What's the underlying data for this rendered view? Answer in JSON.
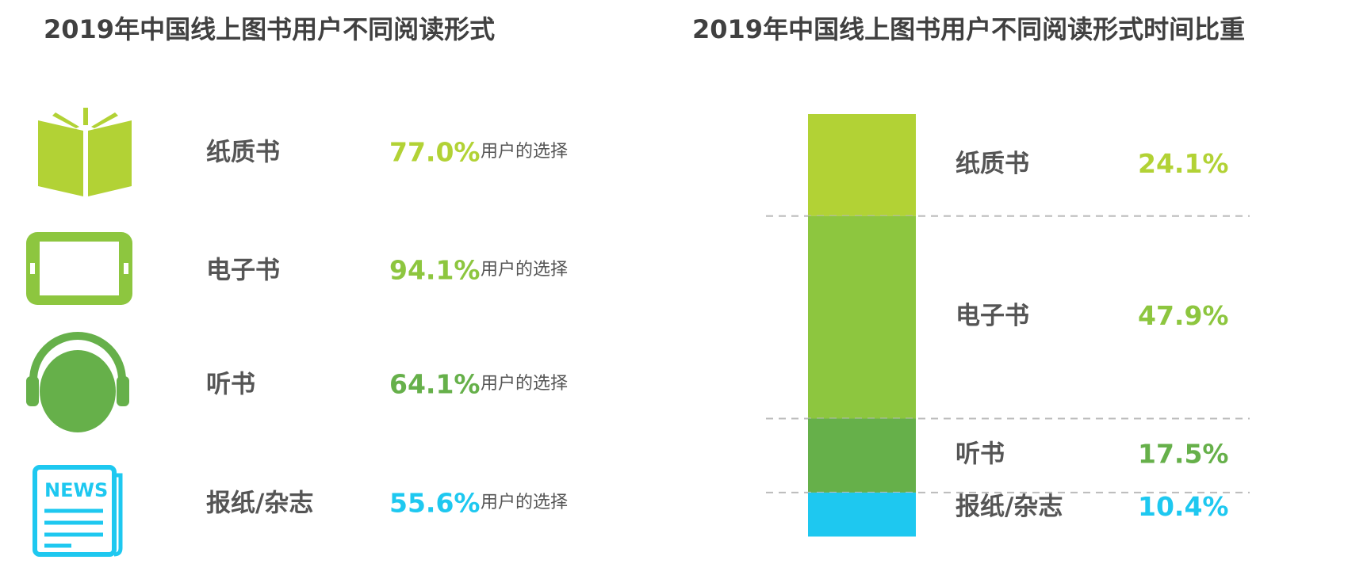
{
  "chart_data": [
    {
      "type": "icon-list",
      "title": "2019年中国线上图书用户不同阅读形式",
      "categories": [
        "纸质书",
        "电子书",
        "听书",
        "报纸/杂志"
      ],
      "values": [
        77.0,
        94.1,
        64.1,
        55.6
      ],
      "value_labels": [
        "77.0%",
        "94.1%",
        "64.1%",
        "55.6%"
      ],
      "note": "用户的选择",
      "icon_text": "NEWS",
      "colors": [
        "#b2d235",
        "#8dc63f",
        "#66b04a",
        "#1ec8f0"
      ]
    },
    {
      "type": "stacked-bar",
      "title": "2019年中国线上图书用户不同阅读形式时间比重",
      "categories": [
        "纸质书",
        "电子书",
        "听书",
        "报纸/杂志"
      ],
      "values": [
        24.1,
        47.9,
        17.5,
        10.4
      ],
      "value_labels": [
        "24.1%",
        "47.9%",
        "17.5%",
        "10.4%"
      ],
      "colors": [
        "#b2d235",
        "#8dc63f",
        "#66b04a",
        "#1ec8f0"
      ]
    }
  ]
}
